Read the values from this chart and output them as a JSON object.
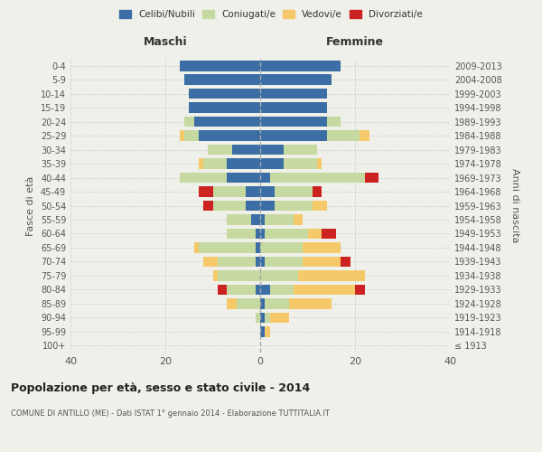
{
  "age_groups": [
    "100+",
    "95-99",
    "90-94",
    "85-89",
    "80-84",
    "75-79",
    "70-74",
    "65-69",
    "60-64",
    "55-59",
    "50-54",
    "45-49",
    "40-44",
    "35-39",
    "30-34",
    "25-29",
    "20-24",
    "15-19",
    "10-14",
    "5-9",
    "0-4"
  ],
  "birth_years": [
    "≤ 1913",
    "1914-1918",
    "1919-1923",
    "1924-1928",
    "1929-1933",
    "1934-1938",
    "1939-1943",
    "1944-1948",
    "1949-1953",
    "1954-1958",
    "1959-1963",
    "1964-1968",
    "1969-1973",
    "1974-1978",
    "1979-1983",
    "1984-1988",
    "1989-1993",
    "1994-1998",
    "1999-2003",
    "2004-2008",
    "2009-2013"
  ],
  "maschi": {
    "celibi": [
      0,
      0,
      0,
      0,
      1,
      0,
      1,
      1,
      1,
      2,
      3,
      3,
      7,
      7,
      6,
      13,
      14,
      15,
      15,
      16,
      17
    ],
    "coniugati": [
      0,
      0,
      1,
      5,
      6,
      9,
      8,
      12,
      6,
      5,
      7,
      7,
      10,
      5,
      5,
      3,
      2,
      0,
      0,
      0,
      0
    ],
    "vedovi": [
      0,
      0,
      0,
      2,
      0,
      1,
      3,
      1,
      0,
      0,
      0,
      0,
      0,
      1,
      0,
      1,
      0,
      0,
      0,
      0,
      0
    ],
    "divorziati": [
      0,
      0,
      0,
      0,
      2,
      0,
      0,
      0,
      0,
      0,
      2,
      3,
      0,
      0,
      0,
      0,
      0,
      0,
      0,
      0,
      0
    ]
  },
  "femmine": {
    "nubili": [
      0,
      1,
      1,
      1,
      2,
      0,
      1,
      0,
      1,
      1,
      3,
      3,
      2,
      5,
      5,
      14,
      14,
      14,
      14,
      15,
      17
    ],
    "coniugate": [
      0,
      0,
      1,
      5,
      5,
      8,
      8,
      9,
      9,
      6,
      8,
      8,
      20,
      7,
      7,
      7,
      3,
      0,
      0,
      0,
      0
    ],
    "vedove": [
      0,
      1,
      4,
      9,
      13,
      14,
      8,
      8,
      3,
      2,
      3,
      0,
      0,
      1,
      0,
      2,
      0,
      0,
      0,
      0,
      0
    ],
    "divorziate": [
      0,
      0,
      0,
      0,
      2,
      0,
      2,
      0,
      3,
      0,
      0,
      2,
      3,
      0,
      0,
      0,
      0,
      0,
      0,
      0,
      0
    ]
  },
  "colors": {
    "celibi_nubili": "#3a6ea5",
    "coniugati": "#c5d9a0",
    "vedovi": "#f5c96a",
    "divorziati": "#cc2222"
  },
  "xlim": [
    -40,
    40
  ],
  "xticks": [
    -40,
    -20,
    0,
    20,
    40
  ],
  "xticklabels": [
    "40",
    "20",
    "0",
    "20",
    "40"
  ],
  "title": "Popolazione per età, sesso e stato civile - 2014",
  "subtitle": "COMUNE DI ANTILLO (ME) - Dati ISTAT 1° gennaio 2014 - Elaborazione TUTTITALIA.IT",
  "ylabel_left": "Fasce di età",
  "ylabel_right": "Anni di nascita",
  "label_maschi": "Maschi",
  "label_femmine": "Femmine",
  "legend_labels": [
    "Celibi/Nubili",
    "Coniugati/e",
    "Vedovi/e",
    "Divorziati/e"
  ],
  "bg_color": "#f0f0eb",
  "plot_bg": "#f0f0eb"
}
